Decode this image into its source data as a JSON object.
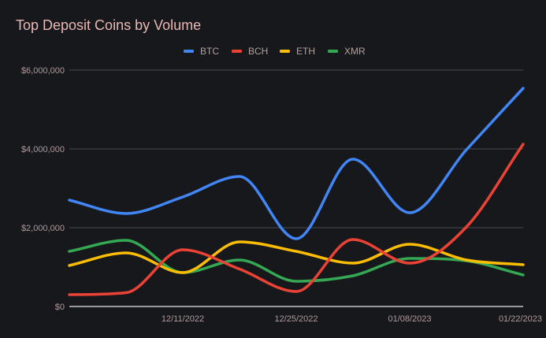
{
  "chart_data": {
    "type": "line",
    "title": "Top Deposit Coins by Volume",
    "xlabel": "",
    "ylabel": "",
    "x": [
      "11/27/2022",
      "12/04/2022",
      "12/11/2022",
      "12/18/2022",
      "12/25/2022",
      "01/01/2023",
      "01/08/2023",
      "01/15/2023",
      "01/22/2023"
    ],
    "x_tick_labels": [
      {
        "index": 2,
        "label": "12/11/2022"
      },
      {
        "index": 4,
        "label": "12/25/2022"
      },
      {
        "index": 6,
        "label": "01/08/2023"
      },
      {
        "index": 8,
        "label": "01/22/2023"
      }
    ],
    "ylim": [
      0,
      6000000
    ],
    "y_ticks": [
      {
        "value": 0,
        "label": "$0"
      },
      {
        "value": 2000000,
        "label": "$2,000,000"
      },
      {
        "value": 4000000,
        "label": "$4,000,000"
      },
      {
        "value": 6000000,
        "label": "$6,000,000"
      }
    ],
    "grid": true,
    "smooth": true,
    "legend_position": "top-center",
    "series": [
      {
        "name": "BTC",
        "color": "#4285f4",
        "values": [
          2700000,
          2360000,
          2780000,
          3300000,
          1720000,
          3740000,
          2380000,
          3980000,
          5540000
        ]
      },
      {
        "name": "BCH",
        "color": "#ea4335",
        "values": [
          300000,
          350000,
          1440000,
          950000,
          380000,
          1700000,
          1100000,
          2020000,
          4120000
        ]
      },
      {
        "name": "ETH",
        "color": "#fbbc04",
        "values": [
          1040000,
          1360000,
          860000,
          1640000,
          1400000,
          1100000,
          1580000,
          1180000,
          1060000
        ]
      },
      {
        "name": "XMR",
        "color": "#34a853",
        "values": [
          1400000,
          1680000,
          860000,
          1180000,
          640000,
          780000,
          1220000,
          1160000,
          800000
        ]
      }
    ]
  }
}
